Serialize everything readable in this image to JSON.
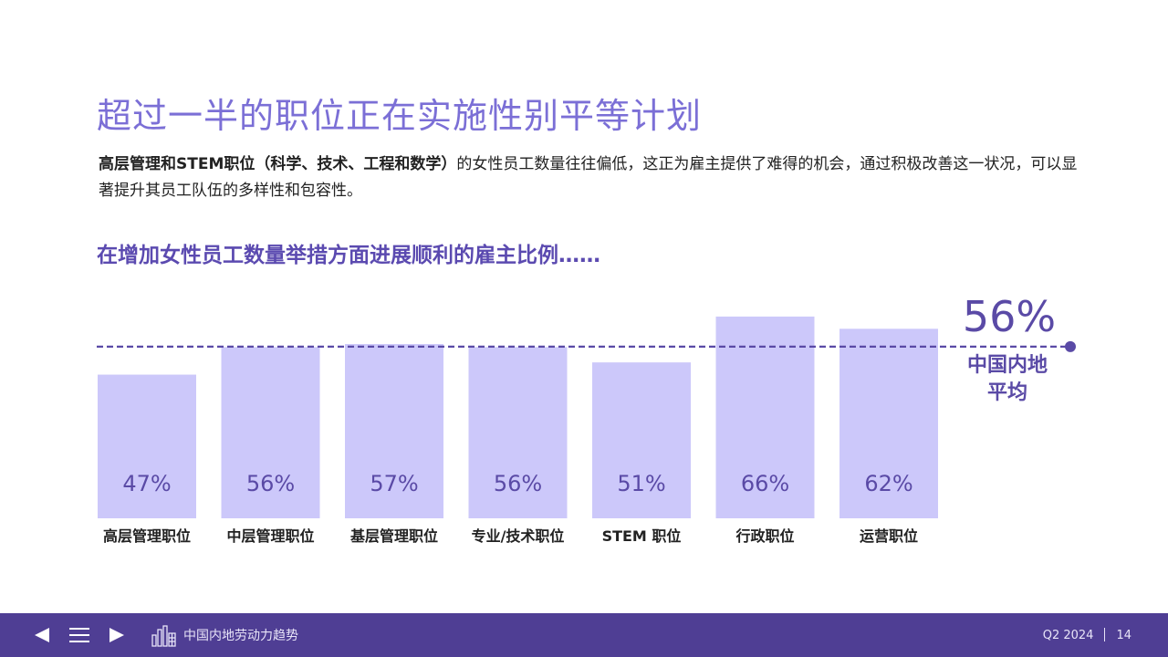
{
  "title": "超过一半的职位正在实施性别平等计划",
  "intro": {
    "bold": "高层管理和STEM职位（科学、技术、工程和数学）",
    "rest": "的女性员工数量往往偏低，这正为雇主提供了难得的机会，通过积极改善这一状况，可以显著提升其员工队伍的多样性和包容性。"
  },
  "subtitle": "在增加女性员工数量举措方面进展顺利的雇主比例……",
  "average": {
    "value_label": "56%",
    "label_line1": "中国内地",
    "label_line2": "平均"
  },
  "chart_data": {
    "type": "bar",
    "categories": [
      "高层管理职位",
      "中层管理职位",
      "基层管理职位",
      "专业/技术职位",
      "STEM 职位",
      "行政职位",
      "运营职位"
    ],
    "values": [
      47,
      56,
      57,
      56,
      51,
      66,
      62
    ],
    "value_labels": [
      "47%",
      "56%",
      "57%",
      "56%",
      "51%",
      "66%",
      "62%"
    ],
    "reference_line": 56,
    "colors": {
      "bar": "#ccc8fa",
      "bar_label": "#5a4aa6",
      "reference_line": "#5a4aa6",
      "category_label": "#222222"
    }
  },
  "footer": {
    "brand": "中国内地劳动力趋势",
    "period": "Q2 2024",
    "page": "14",
    "icons": [
      "prev-arrow-icon",
      "menu-icon",
      "next-arrow-icon",
      "city-building-icon"
    ],
    "color": "#4f3e94"
  }
}
